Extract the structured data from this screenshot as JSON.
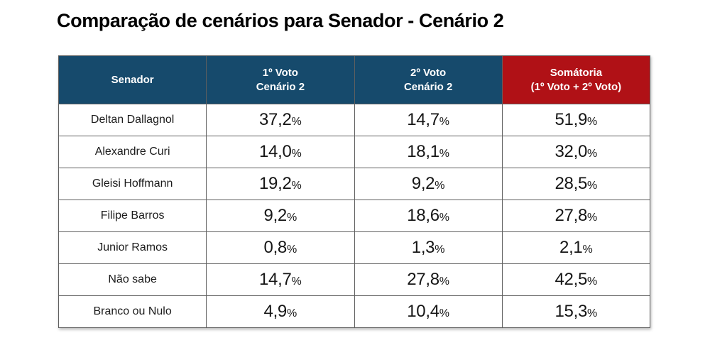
{
  "title": "Comparação de cenários para Senador - Cenário 2",
  "colors": {
    "header_blue": "#164A6C",
    "header_red": "#B01116",
    "border_gray": "#5F5F5F",
    "text_dark": "#1B1B1B",
    "background": "#FFFFFF"
  },
  "table": {
    "percent_suffix": "%",
    "columns": [
      {
        "label": "Senador"
      },
      {
        "label": "1º Voto\nCenário 2"
      },
      {
        "label": "2º Voto\nCenário 2"
      },
      {
        "label": "Somátoria\n(1º Voto + 2º Voto)"
      }
    ],
    "rows": [
      {
        "name": "Deltan Dallagnol",
        "first": "37,2",
        "second": "14,7",
        "total": "51,9"
      },
      {
        "name": "Alexandre Curi",
        "first": "14,0",
        "second": "18,1",
        "total": "32,0"
      },
      {
        "name": "Gleisi Hoffmann",
        "first": "19,2",
        "second": "9,2",
        "total": "28,5"
      },
      {
        "name": "Filipe Barros",
        "first": "9,2",
        "second": "18,6",
        "total": "27,8"
      },
      {
        "name": "Junior Ramos",
        "first": "0,8",
        "second": "1,3",
        "total": "2,1"
      },
      {
        "name": "Não sabe",
        "first": "14,7",
        "second": "27,8",
        "total": "42,5"
      },
      {
        "name": "Branco ou Nulo",
        "first": "4,9",
        "second": "10,4",
        "total": "15,3"
      }
    ]
  },
  "chart_data": {
    "type": "table",
    "title": "Comparação de cenários para Senador - Cenário 2",
    "categories": [
      "Deltan Dallagnol",
      "Alexandre Curi",
      "Gleisi Hoffmann",
      "Filipe Barros",
      "Junior Ramos",
      "Não sabe",
      "Branco ou Nulo"
    ],
    "series": [
      {
        "name": "1º Voto Cenário 2",
        "values": [
          37.2,
          14.0,
          19.2,
          9.2,
          0.8,
          14.7,
          4.9
        ]
      },
      {
        "name": "2º Voto Cenário 2",
        "values": [
          14.7,
          18.1,
          9.2,
          18.6,
          1.3,
          27.8,
          10.4
        ]
      },
      {
        "name": "Somátoria (1º Voto + 2º Voto)",
        "values": [
          51.9,
          32.0,
          28.5,
          27.8,
          2.1,
          42.5,
          15.3
        ]
      }
    ],
    "unit": "%"
  }
}
